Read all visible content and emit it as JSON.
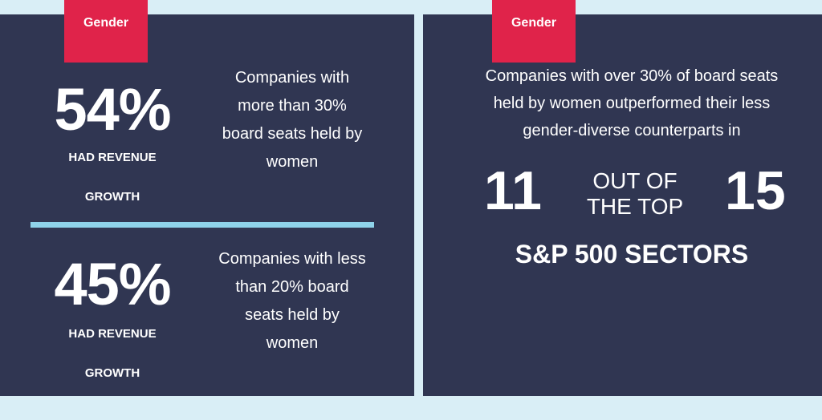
{
  "left_panel": {
    "tag": "Gender",
    "stats": [
      {
        "percent": "54%",
        "label_line1": "HAD REVENUE",
        "label_line2": "GROWTH",
        "desc_lines": [
          "Companies with",
          "more than 30%",
          "board seats held by",
          "women"
        ]
      },
      {
        "percent": "45%",
        "label_line1": "HAD REVENUE",
        "label_line2": "GROWTH",
        "desc_lines": [
          "Companies with less",
          "than 20% board",
          "seats held by",
          "women"
        ]
      }
    ]
  },
  "right_panel": {
    "tag": "Gender",
    "desc_lines": [
      "Companies with over 30% of board seats",
      "held by women outperformed their less",
      "gender-diverse counterparts in"
    ],
    "number_left": "11",
    "middle_line1": "OUT OF",
    "middle_line2": "THE TOP",
    "number_right": "15",
    "bottom_label": "S&P 500 SECTORS"
  },
  "colors": {
    "panel_bg": "#303652",
    "tag_bg": "#e0234a",
    "divider": "#8fd3ea",
    "page_bg": "#d9eef6"
  }
}
